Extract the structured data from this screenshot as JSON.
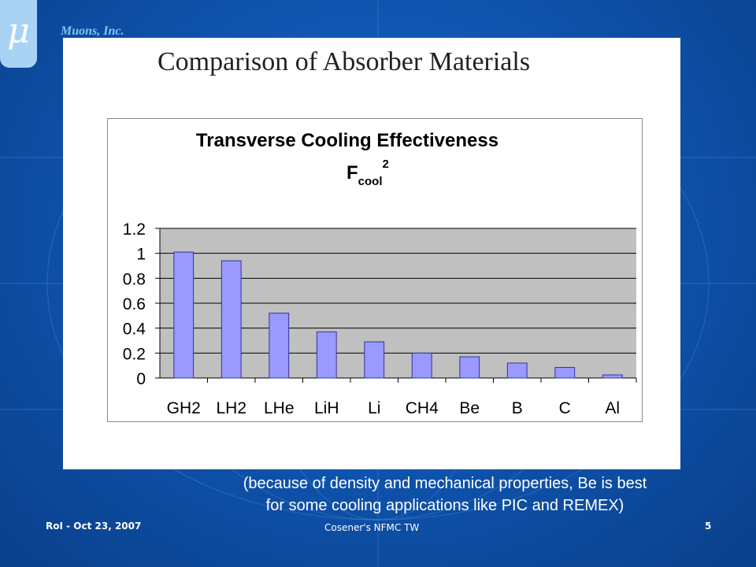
{
  "header": {
    "logo_glyph": "μ",
    "company": "Muons, Inc."
  },
  "slide": {
    "title": "Comparison of Absorber Materials",
    "caption_line1": "(because of density and mechanical properties, Be is best",
    "caption_line2": "for some cooling applications like PIC and REMEX)"
  },
  "footer": {
    "left": "RoI - Oct 23, 2007",
    "center": "Cosener's NFMC TW",
    "page": "5"
  },
  "chart_data": {
    "type": "bar",
    "title": "Transverse Cooling Effectiveness",
    "subtitle": {
      "base": "F",
      "subscript": "cool",
      "superscript": "2"
    },
    "categories": [
      "GH2",
      "LH2",
      "LHe",
      "LiH",
      "Li",
      "CH4",
      "Be",
      "B",
      "C",
      "Al"
    ],
    "values": [
      1.01,
      0.94,
      0.52,
      0.37,
      0.29,
      0.2,
      0.17,
      0.12,
      0.085,
      0.025
    ],
    "yticks": [
      "0",
      "0.2",
      "0.4",
      "0.6",
      "0.8",
      "1",
      "1.2"
    ],
    "ylim": [
      0,
      1.2
    ],
    "grid": true,
    "legend": "none",
    "colors": {
      "bar": "#9999ff",
      "bar_stroke": "#333399",
      "plot_bg": "#c0c0c0",
      "grid": "#000000"
    }
  }
}
